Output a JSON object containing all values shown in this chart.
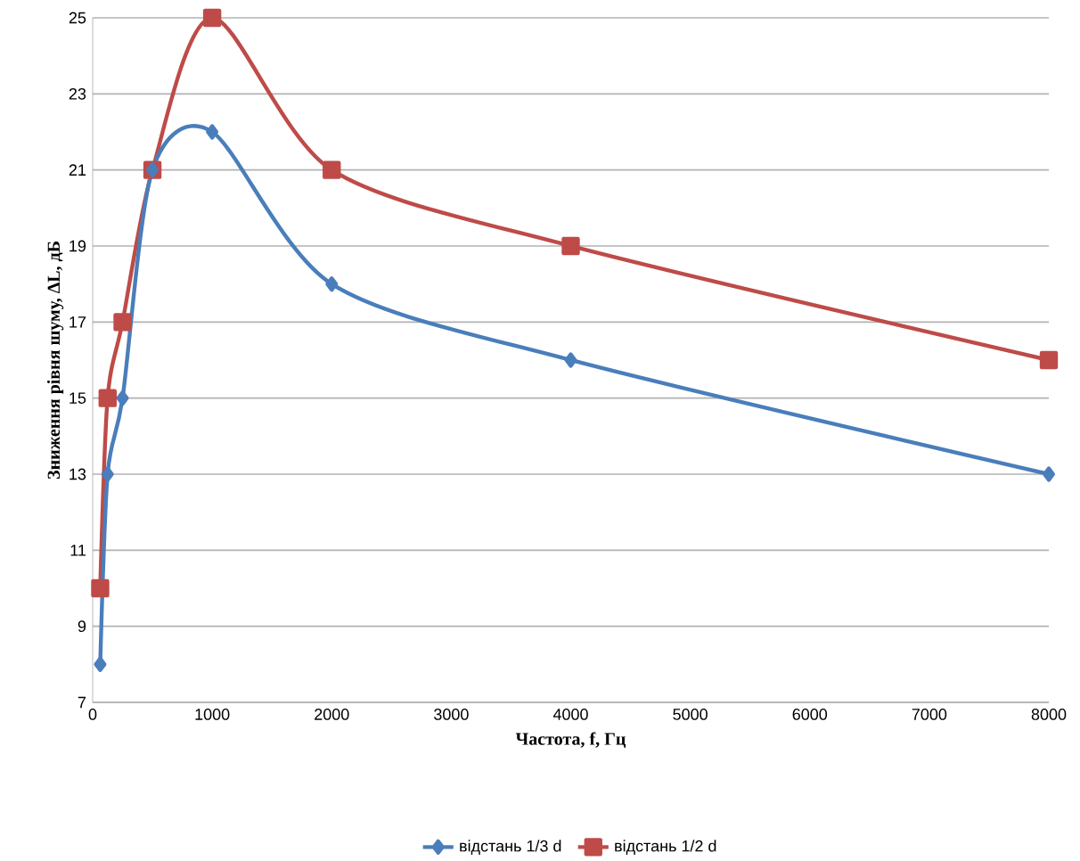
{
  "chart_data": {
    "type": "line",
    "xlabel": "Частота, f, Гц",
    "ylabel": "Зниження рівня шуму, ΔL, дБ",
    "x": [
      63,
      125,
      250,
      500,
      1000,
      2000,
      4000,
      8000
    ],
    "series": [
      {
        "name": "відстань 1/3 d",
        "color": "#4a7ebb",
        "marker": "diamond",
        "values": [
          8,
          13,
          15,
          21,
          22,
          18,
          16,
          13
        ]
      },
      {
        "name": "відстань 1/2 d",
        "color": "#be4b48",
        "marker": "square",
        "values": [
          10,
          15,
          17,
          21,
          25,
          21,
          19,
          16
        ]
      }
    ],
    "xlim": [
      0,
      8000
    ],
    "ylim": [
      7,
      25
    ],
    "xticks": [
      0,
      1000,
      2000,
      3000,
      4000,
      5000,
      6000,
      7000,
      8000
    ],
    "yticks": [
      7,
      9,
      11,
      13,
      15,
      17,
      19,
      21,
      23,
      25
    ],
    "grid": "y",
    "legend": "bottom",
    "line_style": "solid"
  }
}
